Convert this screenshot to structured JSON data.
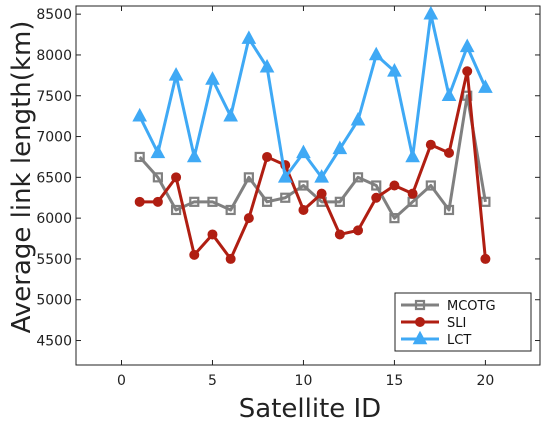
{
  "chart_data": {
    "type": "line",
    "title": "",
    "xlabel": "Satellite ID",
    "ylabel": "Average link length(km)",
    "xlim": [
      -2.5,
      23
    ],
    "ylim": [
      4200,
      8600
    ],
    "xticks": [
      0,
      5,
      10,
      15,
      20
    ],
    "yticks": [
      4500,
      5000,
      5500,
      6000,
      6500,
      7000,
      7500,
      8000,
      8500
    ],
    "grid": false,
    "legend": "bottom-right",
    "x": [
      1,
      2,
      3,
      4,
      5,
      6,
      7,
      8,
      9,
      10,
      11,
      12,
      13,
      14,
      15,
      16,
      17,
      18,
      19,
      20
    ],
    "series": [
      {
        "name": "MCOTG",
        "color": "#808080",
        "marker": "square",
        "values": [
          6750,
          6500,
          6100,
          6200,
          6200,
          6100,
          6500,
          6200,
          6250,
          6400,
          6200,
          6200,
          6500,
          6400,
          6000,
          6200,
          6400,
          6100,
          7500,
          6200
        ]
      },
      {
        "name": "SLI",
        "color": "#b01e12",
        "marker": "circle",
        "values": [
          6200,
          6200,
          6500,
          5550,
          5800,
          5500,
          6000,
          6750,
          6650,
          6100,
          6300,
          5800,
          5850,
          6250,
          6400,
          6300,
          6900,
          6800,
          7800,
          5500
        ]
      },
      {
        "name": "LCT",
        "color": "#3fa9f5",
        "marker": "triangle",
        "values": [
          7250,
          6800,
          7750,
          6750,
          7700,
          7250,
          8200,
          7850,
          6500,
          6800,
          6500,
          6850,
          7200,
          8000,
          7800,
          6750,
          8500,
          7500,
          8100,
          7600
        ]
      }
    ]
  }
}
